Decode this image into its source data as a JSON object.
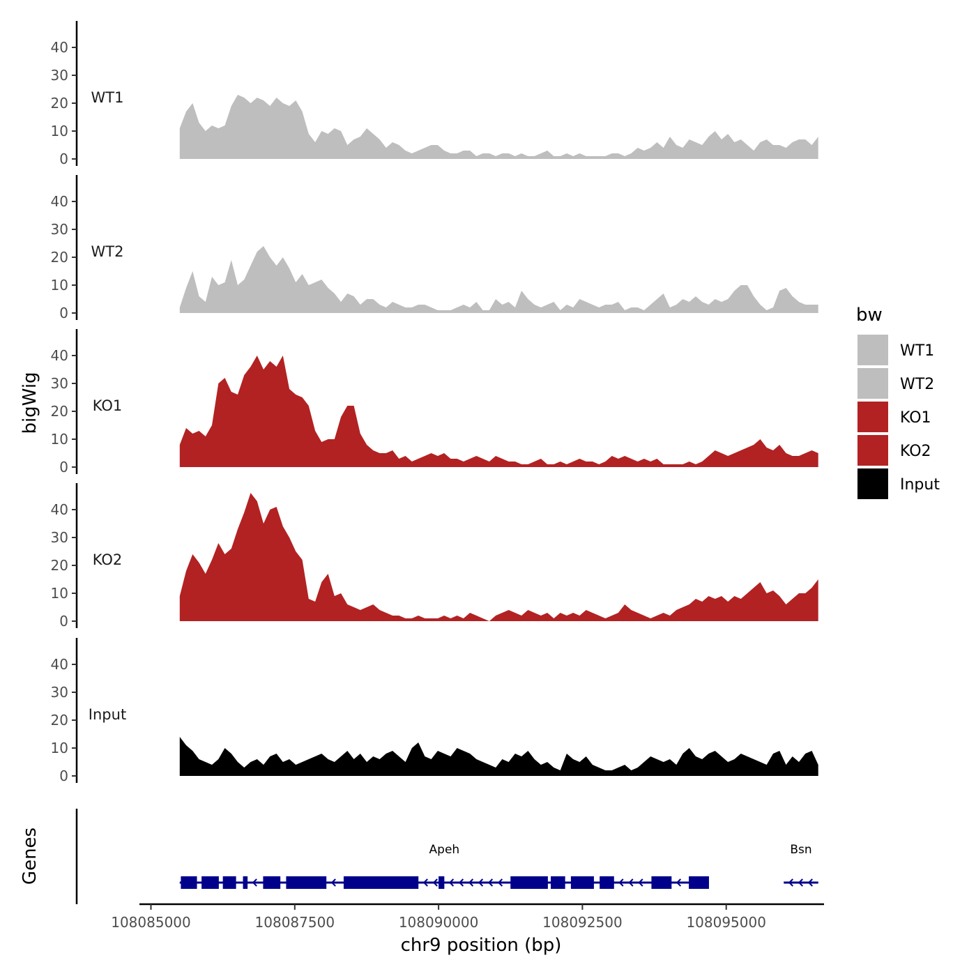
{
  "chart_data": {
    "type": "area",
    "title": "",
    "ylabel": "bigWig",
    "genes_label": "Genes",
    "xlabel": "chr9 position (bp)",
    "xlim": [
      108084800,
      108096700
    ],
    "ylim": [
      0,
      50
    ],
    "yticks": [
      0,
      10,
      20,
      30,
      40
    ],
    "xticks": [
      108085000,
      108087500,
      108090000,
      108092500,
      108095000
    ],
    "xtick_labels": [
      "108085000",
      "108087500",
      "108090000",
      "108092500",
      "108095000"
    ],
    "x_start": 108085500,
    "x_end": 108096600,
    "legend": {
      "title": "bw",
      "entries": [
        {
          "label": "WT1",
          "color": "#bebebe"
        },
        {
          "label": "WT2",
          "color": "#bebebe"
        },
        {
          "label": "KO1",
          "color": "#b22222"
        },
        {
          "label": "KO2",
          "color": "#b22222"
        },
        {
          "label": "Input",
          "color": "#000000"
        }
      ]
    },
    "series": [
      {
        "name": "WT1",
        "color": "#bebebe",
        "values": [
          11,
          17,
          20,
          13,
          10,
          12,
          11,
          12,
          19,
          23,
          22,
          20,
          22,
          21,
          19,
          22,
          20,
          19,
          21,
          17,
          9,
          6,
          10,
          9,
          11,
          10,
          5,
          7,
          8,
          11,
          9,
          7,
          4,
          6,
          5,
          3,
          2,
          3,
          4,
          5,
          5,
          3,
          2,
          2,
          3,
          3,
          1,
          2,
          2,
          1,
          2,
          2,
          1,
          2,
          1,
          1,
          2,
          3,
          1,
          1,
          2,
          1,
          2,
          1,
          1,
          1,
          1,
          2,
          2,
          1,
          2,
          4,
          3,
          4,
          6,
          4,
          8,
          5,
          4,
          7,
          6,
          5,
          8,
          10,
          7,
          9,
          6,
          7,
          5,
          3,
          6,
          7,
          5,
          5,
          4,
          6,
          7,
          7,
          5,
          8
        ]
      },
      {
        "name": "WT2",
        "color": "#bebebe",
        "values": [
          2,
          9,
          15,
          6,
          4,
          13,
          10,
          11,
          19,
          10,
          12,
          17,
          22,
          24,
          20,
          17,
          20,
          16,
          11,
          14,
          10,
          11,
          12,
          9,
          7,
          4,
          7,
          6,
          3,
          5,
          5,
          3,
          2,
          4,
          3,
          2,
          2,
          3,
          3,
          2,
          1,
          1,
          1,
          2,
          3,
          2,
          4,
          1,
          1,
          5,
          3,
          4,
          2,
          8,
          5,
          3,
          2,
          3,
          4,
          1,
          3,
          2,
          5,
          4,
          3,
          2,
          3,
          3,
          4,
          1,
          2,
          2,
          1,
          3,
          5,
          7,
          2,
          3,
          5,
          4,
          6,
          4,
          3,
          5,
          4,
          5,
          8,
          10,
          10,
          6,
          3,
          1,
          2,
          8,
          9,
          6,
          4,
          3,
          3,
          3
        ]
      },
      {
        "name": "KO1",
        "color": "#b22222",
        "values": [
          8,
          14,
          12,
          13,
          11,
          15,
          30,
          32,
          27,
          26,
          33,
          36,
          40,
          35,
          38,
          36,
          40,
          28,
          26,
          25,
          22,
          13,
          9,
          10,
          10,
          18,
          22,
          22,
          12,
          8,
          6,
          5,
          5,
          6,
          3,
          4,
          2,
          3,
          4,
          5,
          4,
          5,
          3,
          3,
          2,
          3,
          4,
          3,
          2,
          4,
          3,
          2,
          2,
          1,
          1,
          2,
          3,
          1,
          1,
          2,
          1,
          2,
          3,
          2,
          2,
          1,
          2,
          4,
          3,
          4,
          3,
          2,
          3,
          2,
          3,
          1,
          1,
          1,
          1,
          2,
          1,
          2,
          4,
          6,
          5,
          4,
          5,
          6,
          7,
          8,
          10,
          7,
          6,
          8,
          5,
          4,
          4,
          5,
          6,
          5
        ]
      },
      {
        "name": "KO2",
        "color": "#b22222",
        "values": [
          9,
          18,
          24,
          21,
          17,
          22,
          28,
          24,
          26,
          33,
          39,
          46,
          43,
          35,
          40,
          41,
          34,
          30,
          25,
          22,
          8,
          7,
          14,
          17,
          9,
          10,
          6,
          5,
          4,
          5,
          6,
          4,
          3,
          2,
          2,
          1,
          1,
          2,
          1,
          1,
          1,
          2,
          1,
          2,
          1,
          3,
          2,
          1,
          0,
          2,
          3,
          4,
          3,
          2,
          4,
          3,
          2,
          3,
          1,
          3,
          2,
          3,
          2,
          4,
          3,
          2,
          1,
          2,
          3,
          6,
          4,
          3,
          2,
          1,
          2,
          3,
          2,
          4,
          5,
          6,
          8,
          7,
          9,
          8,
          9,
          7,
          9,
          8,
          10,
          12,
          14,
          10,
          11,
          9,
          6,
          8,
          10,
          10,
          12,
          15
        ]
      },
      {
        "name": "Input",
        "color": "#000000",
        "values": [
          14,
          11,
          9,
          6,
          5,
          4,
          6,
          10,
          8,
          5,
          3,
          5,
          6,
          4,
          7,
          8,
          5,
          6,
          4,
          5,
          6,
          7,
          8,
          6,
          5,
          7,
          9,
          6,
          8,
          5,
          7,
          6,
          8,
          9,
          7,
          5,
          10,
          12,
          7,
          6,
          9,
          8,
          7,
          10,
          9,
          8,
          6,
          5,
          4,
          3,
          6,
          5,
          8,
          7,
          9,
          6,
          4,
          5,
          3,
          2,
          8,
          6,
          5,
          7,
          4,
          3,
          2,
          2,
          3,
          4,
          2,
          3,
          5,
          7,
          6,
          5,
          6,
          4,
          8,
          10,
          7,
          6,
          8,
          9,
          7,
          5,
          6,
          8,
          7,
          6,
          5,
          4,
          8,
          9,
          4,
          7,
          5,
          8,
          9,
          4
        ]
      }
    ],
    "genes": [
      {
        "name": "Apeh",
        "start": 108085500,
        "end": 108094700,
        "exons": [
          [
            108085520,
            108085800
          ],
          [
            108085880,
            108086180
          ],
          [
            108086250,
            108086480
          ],
          [
            108086600,
            108086680
          ],
          [
            108086950,
            108087250
          ],
          [
            108087350,
            108088050
          ],
          [
            108088350,
            108089650
          ],
          [
            108090000,
            108090100
          ],
          [
            108091250,
            108091900
          ],
          [
            108091950,
            108092200
          ],
          [
            108092300,
            108092700
          ],
          [
            108092800,
            108093050
          ],
          [
            108093700,
            108094050
          ],
          [
            108094350,
            108094700
          ]
        ]
      },
      {
        "name": "Bsn",
        "start": 108096000,
        "end": 108096600,
        "exons": []
      }
    ]
  }
}
